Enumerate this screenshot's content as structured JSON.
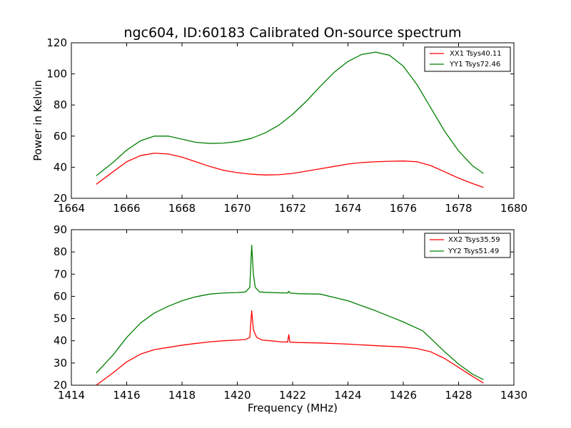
{
  "chart_data": [
    {
      "type": "line",
      "title": "ngc604, ID:60183 Calibrated On-source spectrum",
      "xlabel": "",
      "ylabel": "Power in Kelvin",
      "xlim": [
        1664,
        1680
      ],
      "ylim": [
        20,
        120
      ],
      "xticks": [
        "1664",
        "1666",
        "1668",
        "1670",
        "1672",
        "1674",
        "1676",
        "1678",
        "1680"
      ],
      "yticks": [
        "20",
        "40",
        "60",
        "80",
        "100",
        "120"
      ],
      "grid": false,
      "legend": "top-right",
      "series": [
        {
          "name": "XX1 Tsys40.11",
          "color": "#ff0000",
          "x": [
            1664.9,
            1665.5,
            1666.0,
            1666.5,
            1667.0,
            1667.5,
            1668.0,
            1668.5,
            1669.0,
            1669.5,
            1670.0,
            1670.5,
            1671.0,
            1671.5,
            1672.0,
            1672.5,
            1673.0,
            1673.5,
            1674.0,
            1674.5,
            1675.0,
            1675.5,
            1676.0,
            1676.5,
            1677.0,
            1677.5,
            1678.0,
            1678.5,
            1678.9
          ],
          "y": [
            29,
            37,
            43.5,
            47.5,
            49,
            48.5,
            46.5,
            43.5,
            40.5,
            38,
            36.5,
            35.5,
            35,
            35.2,
            36,
            37.5,
            39,
            40.5,
            42,
            43,
            43.5,
            43.8,
            44,
            43.5,
            41,
            37,
            33,
            29.5,
            27
          ]
        },
        {
          "name": "YY1 Tsys72.46",
          "color": "#008000",
          "x": [
            1664.9,
            1665.5,
            1666.0,
            1666.5,
            1667.0,
            1667.5,
            1668.0,
            1668.5,
            1669.0,
            1669.5,
            1670.0,
            1670.5,
            1671.0,
            1671.5,
            1672.0,
            1672.5,
            1673.0,
            1673.5,
            1674.0,
            1674.5,
            1675.0,
            1675.5,
            1676.0,
            1676.5,
            1677.0,
            1677.5,
            1678.0,
            1678.5,
            1678.9
          ],
          "y": [
            34.5,
            43,
            51,
            57,
            60,
            60,
            58,
            56,
            55.3,
            55.5,
            56.5,
            58.5,
            62,
            67,
            74,
            82.5,
            92,
            101,
            108,
            112.5,
            114,
            112,
            105,
            93,
            78,
            63,
            50.5,
            41,
            36
          ]
        }
      ]
    },
    {
      "type": "line",
      "title": "",
      "xlabel": "Frequency (MHz)",
      "ylabel": "",
      "xlim": [
        1414,
        1430
      ],
      "ylim": [
        20,
        90
      ],
      "xticks": [
        "1414",
        "1416",
        "1418",
        "1420",
        "1422",
        "1424",
        "1426",
        "1428",
        "1430"
      ],
      "yticks": [
        "20",
        "30",
        "40",
        "50",
        "60",
        "70",
        "80",
        "90"
      ],
      "grid": false,
      "legend": "top-right",
      "series": [
        {
          "name": "XX2 Tsys35.59",
          "color": "#ff0000",
          "x": [
            1414.9,
            1415.5,
            1416.0,
            1416.5,
            1417.0,
            1417.5,
            1418.0,
            1418.5,
            1419.0,
            1419.5,
            1420.0,
            1420.3,
            1420.45,
            1420.52,
            1420.58,
            1420.7,
            1420.9,
            1421.2,
            1421.6,
            1421.82,
            1421.86,
            1421.9,
            1422.2,
            1423.0,
            1424.0,
            1425.0,
            1426.0,
            1426.5,
            1427.0,
            1427.5,
            1428.0,
            1428.5,
            1428.9
          ],
          "y": [
            20,
            25.5,
            30.5,
            34,
            36,
            37,
            38,
            38.8,
            39.5,
            40,
            40.3,
            40.6,
            41.5,
            53.5,
            45,
            41.5,
            40.3,
            40,
            39.5,
            39.4,
            42.8,
            39.4,
            39.2,
            39,
            38.5,
            37.8,
            37.2,
            36.5,
            35,
            32,
            28,
            24,
            21
          ]
        },
        {
          "name": "YY2 Tsys51.49",
          "color": "#008000",
          "x": [
            1414.9,
            1415.5,
            1416.0,
            1416.5,
            1417.0,
            1417.5,
            1418.0,
            1418.5,
            1419.0,
            1419.5,
            1420.0,
            1420.3,
            1420.45,
            1420.52,
            1420.58,
            1420.65,
            1420.8,
            1421.0,
            1421.5,
            1421.82,
            1421.86,
            1421.9,
            1422.2,
            1423.0,
            1424.0,
            1425.0,
            1426.0,
            1426.7,
            1427.0,
            1427.5,
            1428.0,
            1428.5,
            1428.9
          ],
          "y": [
            25.5,
            33.5,
            41.5,
            48,
            52.5,
            55.5,
            58,
            59.8,
            61,
            61.5,
            61.7,
            62,
            64,
            83,
            70,
            64,
            62,
            61.8,
            61.6,
            61.5,
            62.3,
            61.5,
            61.2,
            61,
            58,
            53.5,
            48.5,
            44.5,
            41,
            35,
            29.5,
            25,
            22.5
          ]
        }
      ]
    }
  ]
}
